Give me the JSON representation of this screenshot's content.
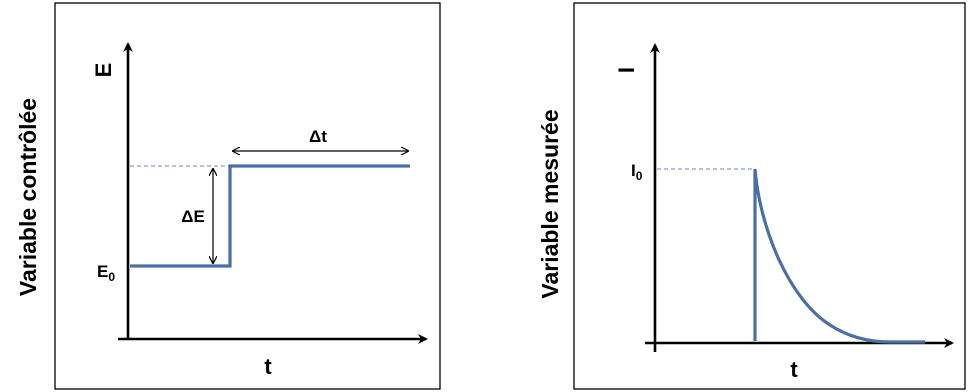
{
  "left_panel": {
    "side_label": "Variable contrôlée",
    "y_axis_label": "E",
    "x_axis_label": "t",
    "start_level_label": "E",
    "start_level_subscript": "0",
    "step_height_label": "ΔE",
    "step_duration_label": "Δt"
  },
  "right_panel": {
    "side_label": "Variable mesurée",
    "y_axis_label": "I",
    "x_axis_label": "t",
    "peak_label": "I",
    "peak_subscript": "0"
  },
  "colors": {
    "curve": "#4a6fa5",
    "axis": "#000000",
    "guide": "#6a89b8"
  }
}
